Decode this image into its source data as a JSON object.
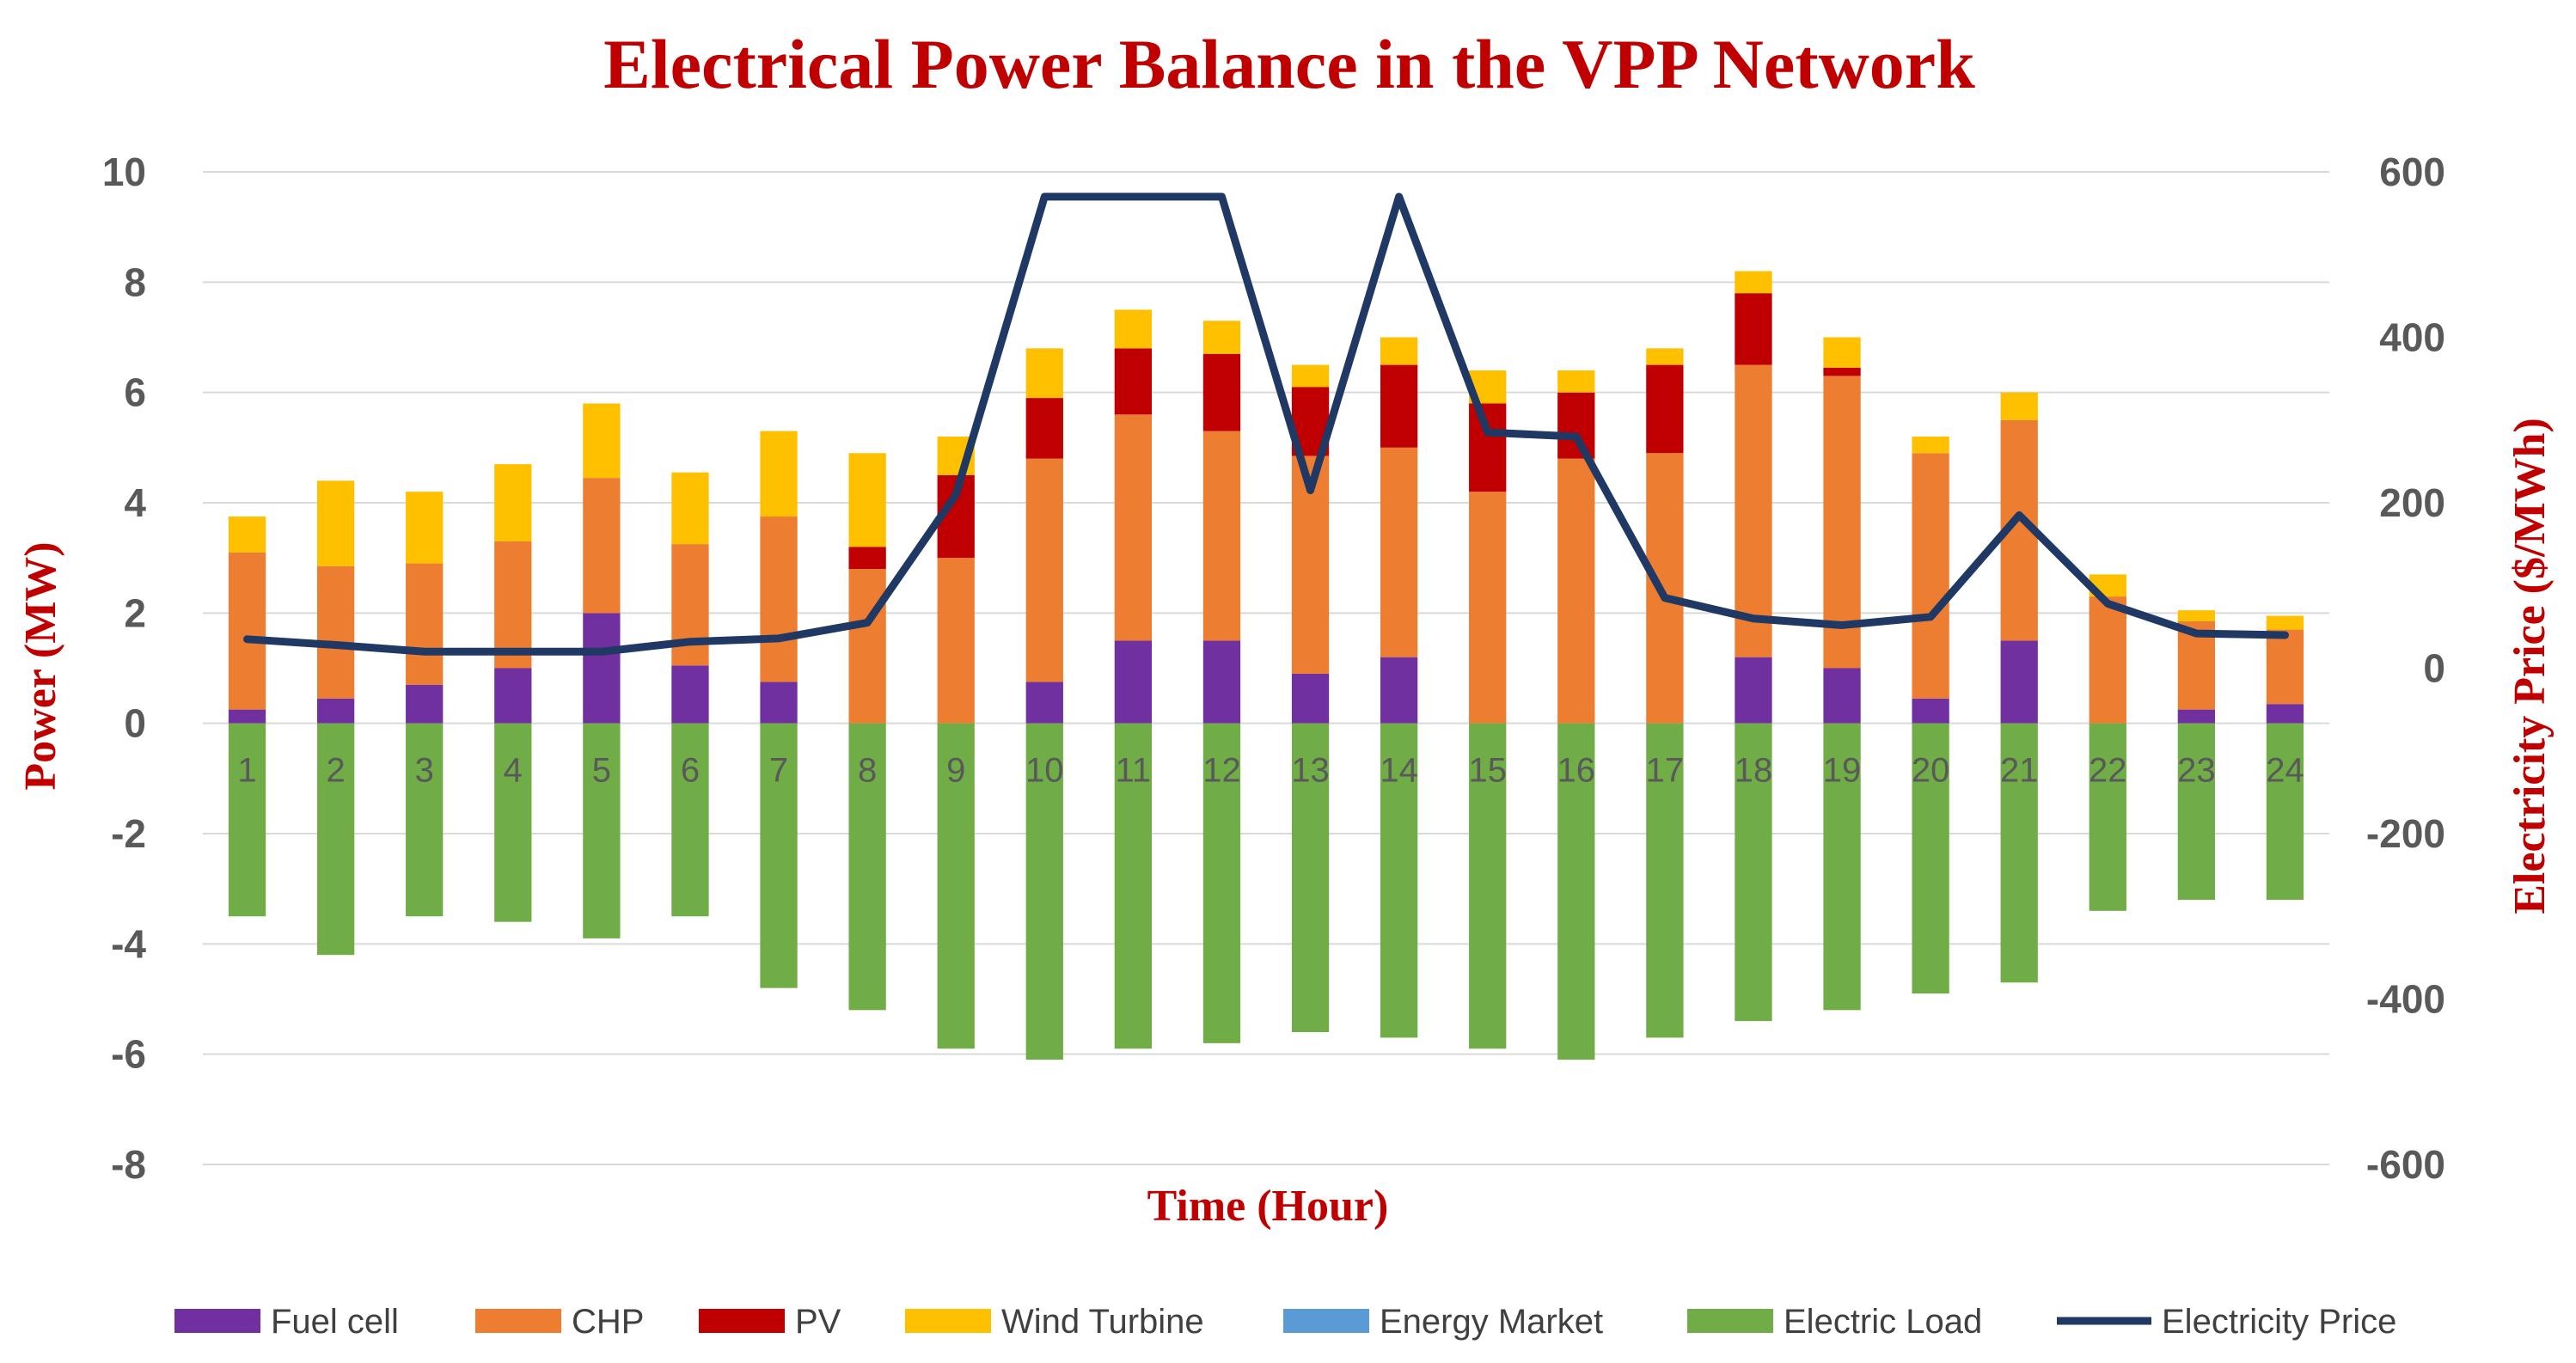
{
  "chart_data": {
    "type": "bar",
    "title": "Electrical Power Balance in the VPP Network",
    "xlabel": "Time (Hour)",
    "ylabel": "Power (MW)",
    "y2label": "Electricity Price ($/MWh)",
    "ylim": [
      -8,
      10
    ],
    "y2lim": [
      -600,
      600
    ],
    "yticks": [
      "10",
      "8",
      "6",
      "4",
      "2",
      "0",
      "-2",
      "-4",
      "-6",
      "-8"
    ],
    "y2ticks": [
      "600",
      "400",
      "200",
      "0",
      "-200",
      "-400",
      "-600"
    ],
    "categories": [
      "1",
      "2",
      "3",
      "4",
      "5",
      "6",
      "7",
      "8",
      "9",
      "10",
      "11",
      "12",
      "13",
      "14",
      "15",
      "16",
      "17",
      "18",
      "19",
      "20",
      "21",
      "22",
      "23",
      "24"
    ],
    "grid": true,
    "legend_position": "bottom",
    "colors": {
      "title": "#c00000",
      "axis_title": "#c00000",
      "tick": "#595959",
      "grid": "#d9d9d9"
    },
    "series": [
      {
        "name": "Fuel cell",
        "kind": "bar",
        "color": "#7030a0",
        "values": [
          0.25,
          0.45,
          0.7,
          1.0,
          2.0,
          1.05,
          0.75,
          0,
          0,
          0.75,
          1.5,
          1.5,
          0.9,
          1.2,
          0,
          0,
          0,
          1.2,
          1.0,
          0.45,
          1.5,
          0,
          0.25,
          0.35
        ]
      },
      {
        "name": "CHP",
        "kind": "bar",
        "color": "#ed7d31",
        "values": [
          2.85,
          2.4,
          2.2,
          2.3,
          2.45,
          2.2,
          3.0,
          2.8,
          3.0,
          4.05,
          4.1,
          3.8,
          3.95,
          3.8,
          4.2,
          4.8,
          4.9,
          5.3,
          5.3,
          4.45,
          4.0,
          2.3,
          1.6,
          1.35
        ]
      },
      {
        "name": "PV",
        "kind": "bar",
        "color": "#c00000",
        "values": [
          0,
          0,
          0,
          0,
          0,
          0,
          0,
          0.4,
          1.5,
          1.1,
          1.2,
          1.4,
          1.25,
          1.5,
          1.6,
          1.2,
          1.6,
          1.3,
          0.15,
          0,
          0,
          0,
          0,
          0
        ]
      },
      {
        "name": "Wind Turbine",
        "kind": "bar",
        "color": "#ffc000",
        "values": [
          0.65,
          1.55,
          1.3,
          1.4,
          1.35,
          1.3,
          1.55,
          1.7,
          0.7,
          0.9,
          0.7,
          0.6,
          0.4,
          0.5,
          0.6,
          0.4,
          0.3,
          0.4,
          0.55,
          0.3,
          0.5,
          0.4,
          0.2,
          0.25
        ]
      },
      {
        "name": "Energy Market",
        "kind": "bar",
        "color": "#5b9bd5",
        "values": [
          0,
          0,
          0,
          0,
          0,
          0,
          0,
          0,
          0,
          0,
          0,
          0,
          0,
          0,
          0,
          0,
          0,
          0,
          0,
          0,
          0,
          0,
          0,
          0
        ]
      },
      {
        "name": "Electric Load",
        "kind": "bar",
        "color": "#70ad47",
        "values": [
          -3.5,
          -4.2,
          -3.5,
          -3.6,
          -3.9,
          -3.5,
          -4.8,
          -5.2,
          -5.9,
          -6.1,
          -5.9,
          -5.8,
          -5.6,
          -5.7,
          -5.9,
          -6.1,
          -5.7,
          -5.4,
          -5.2,
          -4.9,
          -4.7,
          -3.4,
          -3.2,
          -3.2
        ]
      },
      {
        "name": "Electricity Price",
        "kind": "line",
        "axis": "right",
        "color": "#203864",
        "values": [
          35,
          28,
          20,
          20,
          20,
          32,
          36,
          55,
          210,
          570,
          570,
          570,
          215,
          570,
          285,
          280,
          85,
          60,
          52,
          62,
          185,
          78,
          42,
          40
        ]
      }
    ]
  }
}
